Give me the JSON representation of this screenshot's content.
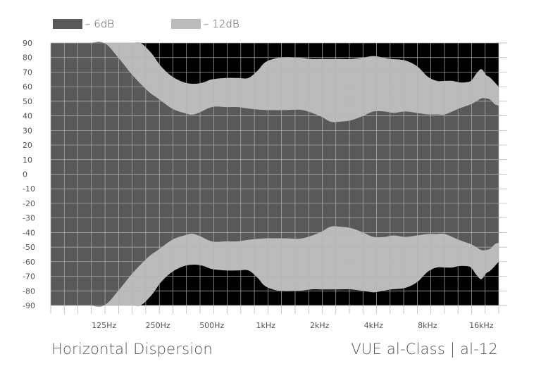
{
  "legend": [
    {
      "label": "– 6dB",
      "color": "#595959"
    },
    {
      "label": "– 12dB",
      "color": "#bbbbbb"
    }
  ],
  "footer": {
    "left": "Horizontal Dispersion",
    "right": "VUE al-Class | al-12"
  },
  "colors": {
    "background_region": "#000000",
    "band_12db": "#bbbbbb",
    "band_6db": "#595959",
    "grid": "#b4b4b4"
  },
  "chart_data": {
    "type": "area",
    "xscale": "log",
    "x_tick_labels": [
      "125Hz",
      "250Hz",
      "500Hz",
      "1kHz",
      "2kHz",
      "4kHz",
      "8kHz",
      "16kHz"
    ],
    "x_tick_values": [
      125,
      250,
      500,
      1000,
      2000,
      4000,
      8000,
      16000
    ],
    "xlim": [
      63,
      20000
    ],
    "ylim": [
      -90,
      90
    ],
    "y_ticks": [
      90,
      80,
      70,
      60,
      50,
      40,
      30,
      20,
      10,
      0,
      -10,
      -20,
      -30,
      -40,
      -50,
      -60,
      -70,
      -80,
      -90
    ],
    "grid": true,
    "symmetric": true,
    "series": [
      {
        "name": "– 6dB",
        "x": [
          63,
          100,
          125,
          150,
          180,
          220,
          250,
          300,
          350,
          400,
          500,
          600,
          700,
          800,
          1000,
          1300,
          1600,
          2000,
          2300,
          2600,
          3000,
          3500,
          4000,
          4600,
          5200,
          6000,
          7000,
          8000,
          9000,
          10000,
          12000,
          14000,
          15000,
          16000,
          17000,
          18000,
          19000,
          20000
        ],
        "y": [
          90,
          90,
          90,
          80,
          68,
          57,
          52,
          45,
          42,
          41,
          46,
          46,
          46,
          45,
          44,
          44,
          44,
          40,
          36,
          36,
          37,
          40,
          43,
          43,
          42,
          43,
          42,
          41,
          41,
          41,
          45,
          48,
          50,
          52,
          52,
          51,
          48,
          47
        ]
      },
      {
        "name": "– 12dB",
        "x": [
          63,
          150,
          180,
          200,
          230,
          260,
          300,
          350,
          400,
          450,
          500,
          600,
          700,
          800,
          900,
          1000,
          1200,
          1500,
          1800,
          2000,
          2500,
          3000,
          3500,
          4000,
          4500,
          5000,
          6000,
          7000,
          8000,
          9000,
          10000,
          11000,
          12000,
          13000,
          14000,
          15000,
          16000,
          17000,
          18000,
          20000
        ],
        "y": [
          90,
          90,
          90,
          90,
          83,
          74,
          67,
          63,
          62,
          63,
          65,
          66,
          66,
          66,
          71,
          77,
          80,
          80,
          79,
          79,
          79,
          79,
          80,
          81,
          80,
          79,
          78,
          74,
          67,
          64,
          64,
          64,
          63,
          63,
          64,
          69,
          72,
          68,
          66,
          60
        ]
      }
    ]
  }
}
